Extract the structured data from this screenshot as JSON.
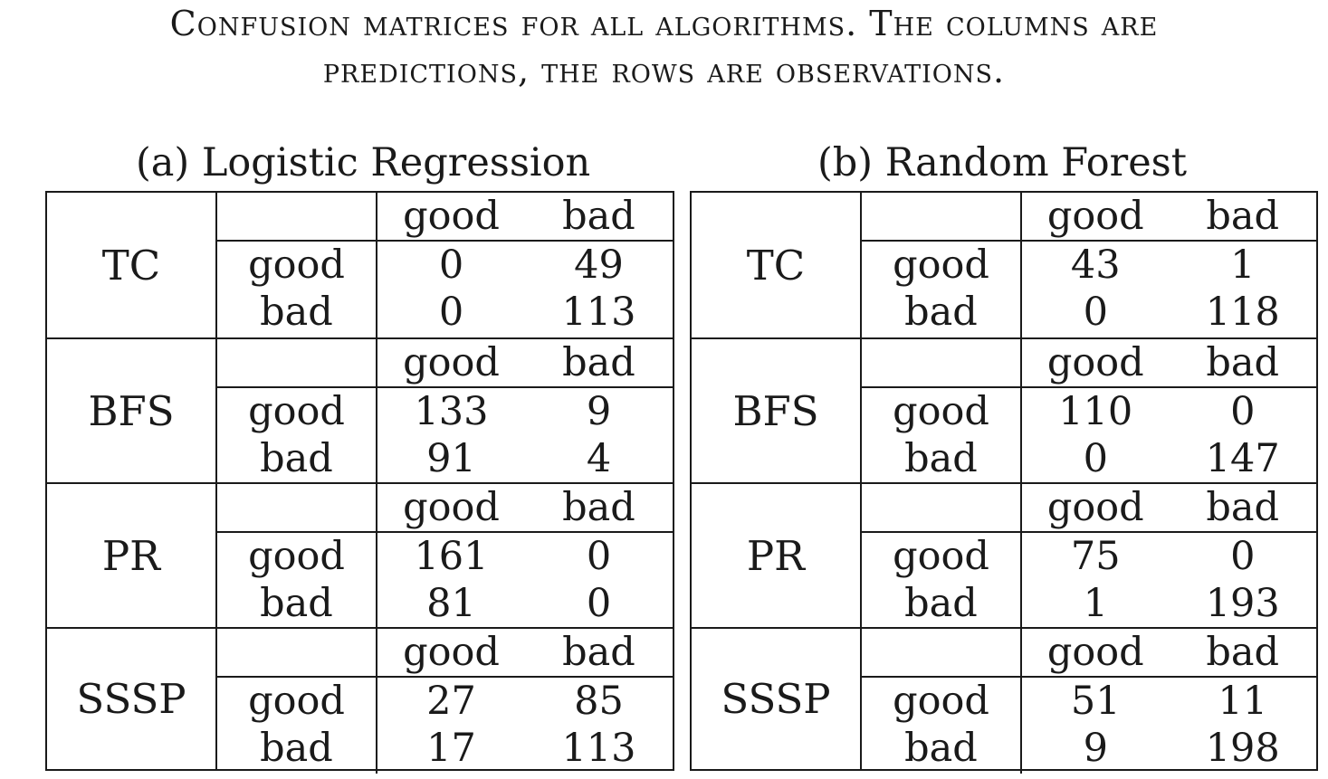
{
  "caption": {
    "line1": "Confusion matrices for all algorithms. The columns are",
    "line2": "predictions, the rows are observations."
  },
  "tables": [
    {
      "subtitle": "(a) Logistic Regression",
      "blocks": [
        {
          "algorithm": "TC",
          "col_headers": [
            "good",
            "bad"
          ],
          "row_labels": [
            "good",
            "bad"
          ],
          "rows": [
            [
              "0",
              "49"
            ],
            [
              "0",
              "113"
            ]
          ]
        },
        {
          "algorithm": "BFS",
          "col_headers": [
            "good",
            "bad"
          ],
          "row_labels": [
            "good",
            "bad"
          ],
          "rows": [
            [
              "133",
              "9"
            ],
            [
              "91",
              "4"
            ]
          ]
        },
        {
          "algorithm": "PR",
          "col_headers": [
            "good",
            "bad"
          ],
          "row_labels": [
            "good",
            "bad"
          ],
          "rows": [
            [
              "161",
              "0"
            ],
            [
              "81",
              "0"
            ]
          ]
        },
        {
          "algorithm": "SSSP",
          "col_headers": [
            "good",
            "bad"
          ],
          "row_labels": [
            "good",
            "bad"
          ],
          "rows": [
            [
              "27",
              "85"
            ],
            [
              "17",
              "113"
            ]
          ]
        }
      ]
    },
    {
      "subtitle": "(b) Random Forest",
      "blocks": [
        {
          "algorithm": "TC",
          "col_headers": [
            "good",
            "bad"
          ],
          "row_labels": [
            "good",
            "bad"
          ],
          "rows": [
            [
              "43",
              "1"
            ],
            [
              "0",
              "118"
            ]
          ]
        },
        {
          "algorithm": "BFS",
          "col_headers": [
            "good",
            "bad"
          ],
          "row_labels": [
            "good",
            "bad"
          ],
          "rows": [
            [
              "110",
              "0"
            ],
            [
              "0",
              "147"
            ]
          ]
        },
        {
          "algorithm": "PR",
          "col_headers": [
            "good",
            "bad"
          ],
          "row_labels": [
            "good",
            "bad"
          ],
          "rows": [
            [
              "75",
              "0"
            ],
            [
              "1",
              "193"
            ]
          ]
        },
        {
          "algorithm": "SSSP",
          "col_headers": [
            "good",
            "bad"
          ],
          "row_labels": [
            "good",
            "bad"
          ],
          "rows": [
            [
              "51",
              "11"
            ],
            [
              "9",
              "198"
            ]
          ]
        }
      ]
    }
  ]
}
